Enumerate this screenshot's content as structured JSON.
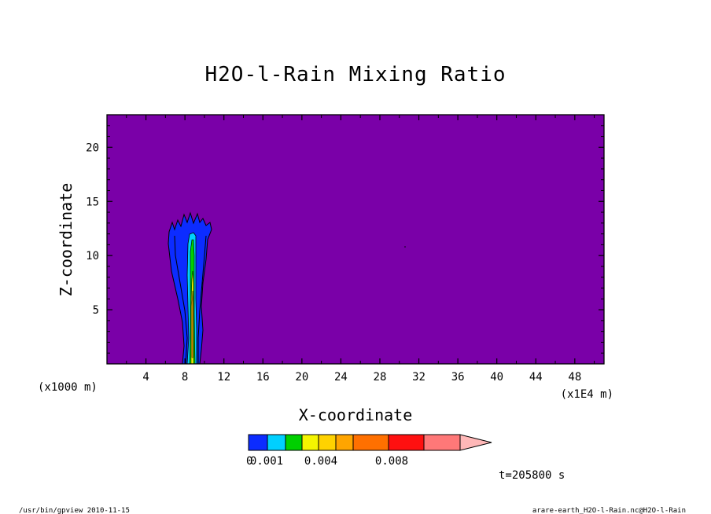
{
  "chart_data": {
    "type": "heatmap",
    "title": "H2O-l-Rain Mixing Ratio",
    "xlabel": "X-coordinate",
    "ylabel": "Z-coordinate",
    "x_unit_left": "(x1000 m)",
    "x_unit_right": "(x1E4 m)",
    "xlim": [
      0,
      51
    ],
    "ylim": [
      0,
      23
    ],
    "x_ticks": [
      4,
      8,
      12,
      16,
      20,
      24,
      28,
      32,
      36,
      40,
      44,
      48
    ],
    "y_ticks": [
      5,
      10,
      15,
      20
    ],
    "background_color": "#7a00a8",
    "colorbar": {
      "colors": [
        "#0c2cff",
        "#00d0ff",
        "#00d000",
        "#f5f500",
        "#ffd200",
        "#ffa500",
        "#ff7000",
        "#ff1010",
        "#ff7878",
        "#ffb8b8"
      ],
      "tick_labels": [
        "0.001",
        "0.004",
        "0.008"
      ],
      "first_label_prefix": "0"
    },
    "time_label": "t=205800  s",
    "footer_left": "/usr/bin/gpview  2010-11-15",
    "footer_right": "arare-earth_H2O-l-Rain.nc@H2O-l-Rain",
    "plume": {
      "x_center": 9,
      "x_range": [
        6.4,
        10.9
      ],
      "z_top": 13.7,
      "levels": [
        "blue",
        "cyan",
        "green",
        "yellow",
        "orange"
      ]
    }
  }
}
